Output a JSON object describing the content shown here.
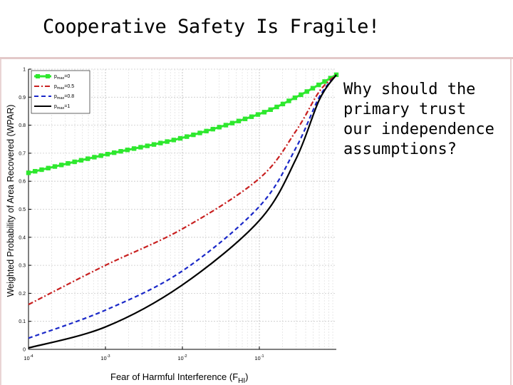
{
  "slide": {
    "title": "Cooperative Safety Is Fragile!",
    "side_text_lines": [
      "Why should the",
      "primary trust",
      "our independence",
      "assumptions?"
    ]
  },
  "chart_data": {
    "type": "line",
    "x_scale": "log",
    "xlim": [
      0.0001,
      1
    ],
    "ylim": [
      0,
      1
    ],
    "xlabel": "Fear of Harmful Interference (F_HI)",
    "xlabel_main": "Fear of Harmful Interference (F",
    "xlabel_sub": "HI",
    "xlabel_close": ")",
    "ylabel": "Weighted Probability of Area Recovered (WPAR)",
    "x_ticks": [
      {
        "value": 0.0001,
        "base": "10",
        "exp": "-4"
      },
      {
        "value": 0.001,
        "base": "10",
        "exp": "-3"
      },
      {
        "value": 0.01,
        "base": "10",
        "exp": "-2"
      },
      {
        "value": 0.1,
        "base": "10",
        "exp": "-1"
      }
    ],
    "y_ticks": [
      "0",
      "0.1",
      "0.2",
      "0.3",
      "0.4",
      "0.5",
      "0.6",
      "0.7",
      "0.8",
      "0.9",
      "1"
    ],
    "grid": true,
    "legend_position": "top-left",
    "series": [
      {
        "name": "p_max = 0",
        "name_main": "p",
        "name_sub": "max",
        "name_val": "=0",
        "color": "#2ee82e",
        "style": "solid-square",
        "x": [
          0.0001,
          0.001,
          0.01,
          0.1,
          0.3,
          0.6,
          1
        ],
        "y": [
          0.63,
          0.695,
          0.755,
          0.84,
          0.9,
          0.945,
          0.98
        ]
      },
      {
        "name": "p_max = 0.5",
        "name_main": "p",
        "name_sub": "max",
        "name_val": "=0.5",
        "color": "#c82020",
        "style": "dashdot",
        "x": [
          0.0001,
          0.001,
          0.01,
          0.1,
          0.3,
          0.6,
          1
        ],
        "y": [
          0.16,
          0.3,
          0.43,
          0.61,
          0.78,
          0.92,
          0.98
        ]
      },
      {
        "name": "p_max = 0.8",
        "name_main": "p",
        "name_sub": "max",
        "name_val": "=0.8",
        "color": "#1a28c8",
        "style": "dashed",
        "x": [
          0.0001,
          0.001,
          0.01,
          0.1,
          0.3,
          0.6,
          1
        ],
        "y": [
          0.04,
          0.14,
          0.28,
          0.51,
          0.72,
          0.9,
          0.98
        ]
      },
      {
        "name": "p_max = 1",
        "name_main": "p",
        "name_sub": "max",
        "name_val": "=1",
        "color": "#000000",
        "style": "solid",
        "x": [
          0.0001,
          0.001,
          0.01,
          0.1,
          0.3,
          0.6,
          1
        ],
        "y": [
          0.005,
          0.08,
          0.23,
          0.46,
          0.68,
          0.89,
          0.98
        ]
      }
    ]
  }
}
